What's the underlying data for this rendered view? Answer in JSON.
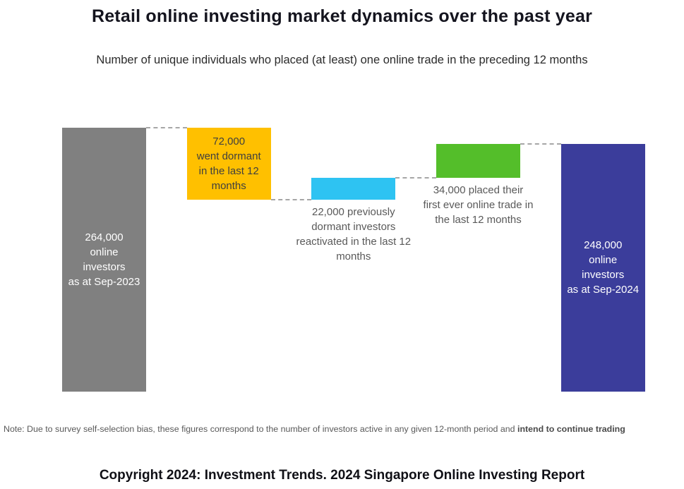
{
  "chart_data": {
    "type": "bar",
    "subtype": "waterfall",
    "title": "Retail online investing market dynamics over the past year",
    "subtitle": "Number of unique individuals who placed (at least) one online trade in the preceding 12 months",
    "unit": "investors",
    "ylim": [
      0,
      264000
    ],
    "grid": false,
    "legend": "none",
    "connector_color": "#a6a6a6",
    "bars": [
      {
        "name": "sep-2023-total",
        "value": 264000,
        "kind": "total",
        "color": "#808080",
        "label_lines": [
          "264,000",
          "online",
          "investors",
          "as at Sep-2023"
        ],
        "label_placement": "inside",
        "label_color": "#ffffff"
      },
      {
        "name": "went-dormant",
        "value": 72000,
        "kind": "decrease",
        "color": "#FFC000",
        "label_lines": [
          "72,000",
          "went dormant",
          "in the last 12",
          "months"
        ],
        "label_placement": "inside",
        "label_color": "#3f3f3f"
      },
      {
        "name": "reactivated",
        "value": 22000,
        "kind": "increase",
        "color": "#2EC3F2",
        "label_lines": [
          "22,000 previously",
          "dormant investors",
          "reactivated in the last 12",
          "months"
        ],
        "label_placement": "below",
        "label_color": "#595959"
      },
      {
        "name": "first-trade",
        "value": 34000,
        "kind": "increase",
        "color": "#54BE2A",
        "label_lines": [
          "34,000 placed their",
          "first ever online trade in",
          "the last 12 months"
        ],
        "label_placement": "below",
        "label_color": "#595959"
      },
      {
        "name": "sep-2024-total",
        "value": 248000,
        "kind": "total",
        "color": "#3B3D9B",
        "label_lines": [
          "248,000",
          "online",
          "investors",
          "as at Sep-2024"
        ],
        "label_placement": "inside",
        "label_color": "#ffffff"
      }
    ]
  },
  "note": {
    "regular": "Note: Due to survey self-selection bias, these figures correspond to the number of investors active in any given 12-month period and ",
    "bold": "intend to continue trading"
  },
  "footer": {
    "text": "Copyright 2024: Investment Trends. 2024 Singapore Online Investing Report"
  }
}
